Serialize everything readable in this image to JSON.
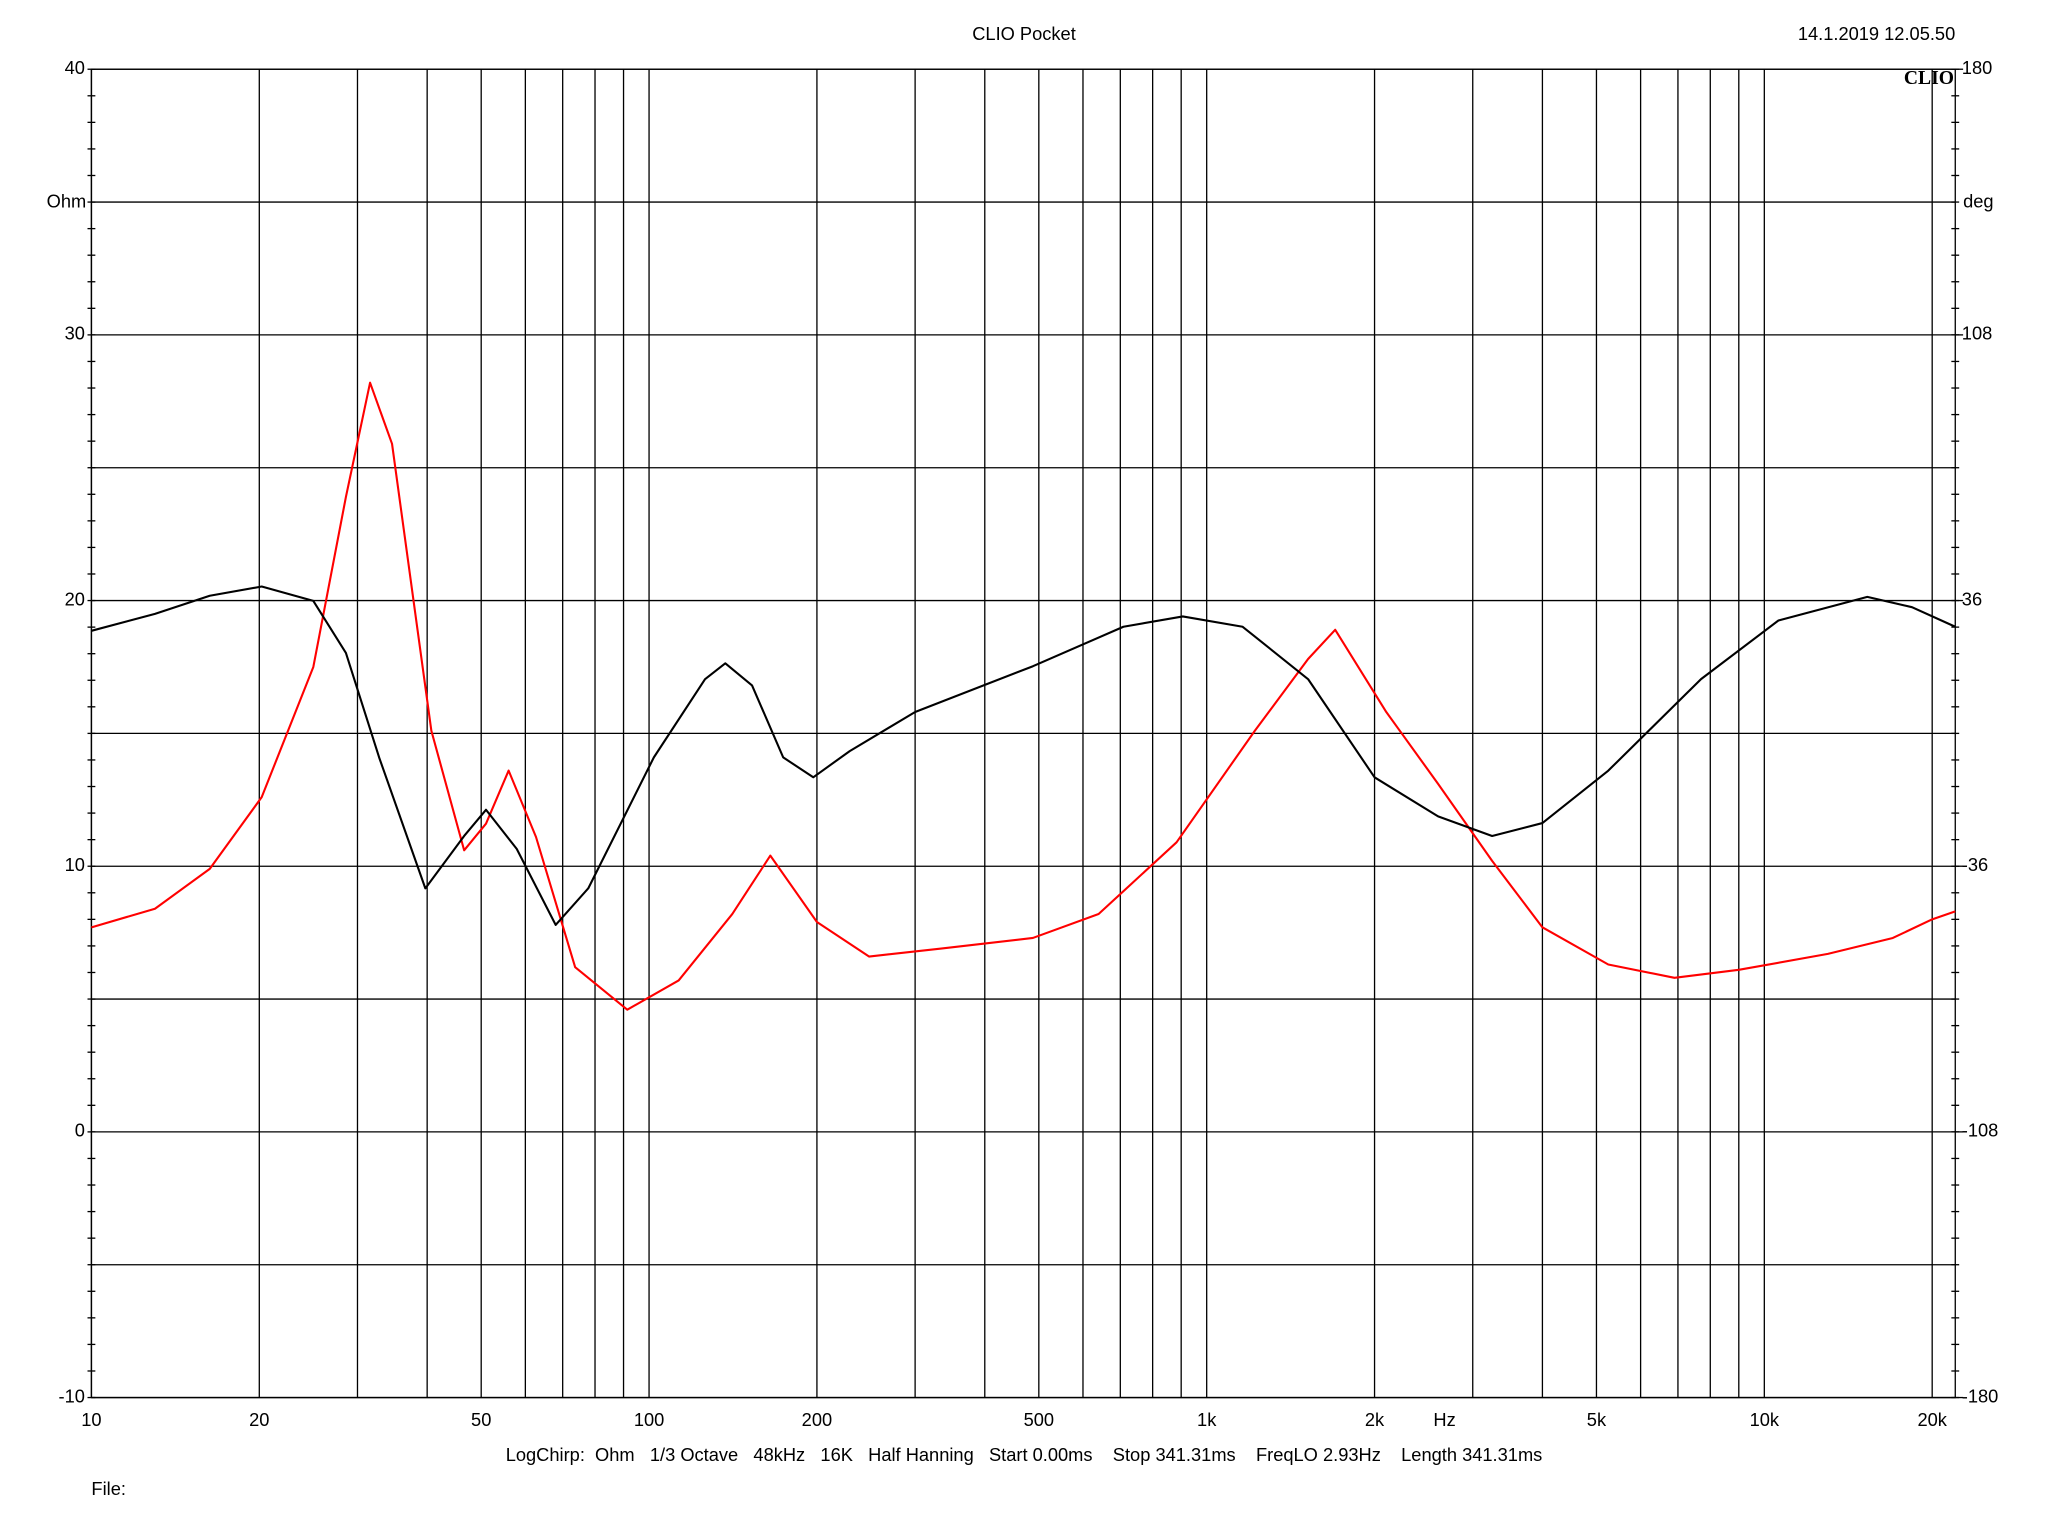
{
  "chart_data": {
    "type": "line",
    "title": "CLIO Pocket",
    "timestamp": "14.1.2019 12.05.50",
    "logo": "CLIO",
    "ylabel": "Ohm",
    "y2label": "deg",
    "xlabel": "Hz",
    "settings": "LogChirp:  Ohm   1/3 Octave   48kHz   16K   Half Hanning   Start 0.00ms    Stop 341.31ms    FreqLO 2.93Hz    Length 341.31ms",
    "file": "File:",
    "xscale": "log",
    "grid": true,
    "xlim": [
      10,
      22000
    ],
    "ylim": [
      -10,
      40
    ],
    "y2lim": [
      -180,
      180
    ],
    "xticks": [
      10,
      20,
      50,
      100,
      200,
      500,
      {
        "value": 1000,
        "label": "1k"
      },
      {
        "value": 2000,
        "label": "2k"
      },
      {
        "value": 5000,
        "label": "5k"
      },
      {
        "value": 10000,
        "label": "10k"
      },
      {
        "value": 20000,
        "label": "20k"
      }
    ],
    "xminor": [
      30,
      40,
      60,
      70,
      80,
      90,
      300,
      400,
      600,
      700,
      800,
      900,
      3000,
      4000,
      6000,
      7000,
      8000,
      9000
    ],
    "yticks": [
      -10,
      0,
      10,
      20,
      30,
      40
    ],
    "yminor": [
      -5,
      5,
      15,
      25,
      35
    ],
    "y2ticks": [
      -180,
      -108,
      -36,
      36,
      108,
      180
    ],
    "series": [
      {
        "color": "#ff0000",
        "x": [
          10,
          13,
          16.3,
          20.2,
          25,
          28.6,
          31.6,
          34.6,
          40.7,
          46.6,
          51,
          56,
          62.7,
          73.7,
          91.4,
          113,
          141,
          165,
          200,
          248,
          334,
          488,
          640,
          883,
          1220,
          1520,
          1700,
          2100,
          2600,
          3250,
          4000,
          5250,
          6900,
          9000,
          13000,
          17000,
          20000,
          22000
        ],
        "values": [
          7.7,
          8.4,
          9.9,
          12.6,
          17.5,
          23.9,
          28.2,
          25.9,
          15.1,
          10.6,
          11.6,
          13.6,
          11.1,
          6.2,
          4.6,
          5.7,
          8.2,
          10.4,
          7.9,
          6.6,
          6.9,
          7.3,
          8.2,
          10.9,
          15.1,
          17.8,
          18.9,
          15.8,
          13.1,
          10.2,
          7.7,
          6.3,
          5.8,
          6.1,
          6.7,
          7.3,
          8.0,
          8.3
        ]
      },
      {
        "color": "#000000",
        "axis": "y2",
        "x": [
          10,
          13,
          16.3,
          20.2,
          25,
          28.6,
          32.8,
          39.7,
          46.6,
          51,
          57.9,
          68,
          77.8,
          102,
          126,
          137,
          153,
          174,
          197,
          229,
          300,
          488,
          709,
          906,
          1160,
          1520,
          2000,
          2600,
          3250,
          4000,
          5250,
          7700,
          10600,
          15300,
          18400,
          22000
        ],
        "values": [
          27.8,
          32.4,
          37.3,
          39.8,
          35.9,
          21.8,
          -6.5,
          -42,
          -27.8,
          -20.7,
          -31.3,
          -51.9,
          -42,
          -6.5,
          14.7,
          19.0,
          13,
          -6.5,
          -11.9,
          -4.8,
          5.8,
          18.2,
          28.9,
          31.7,
          28.9,
          14.7,
          -11.9,
          -22.5,
          -27.8,
          -24.3,
          -10.1,
          14.7,
          30.6,
          37,
          34.2,
          28.9
        ]
      }
    ]
  }
}
